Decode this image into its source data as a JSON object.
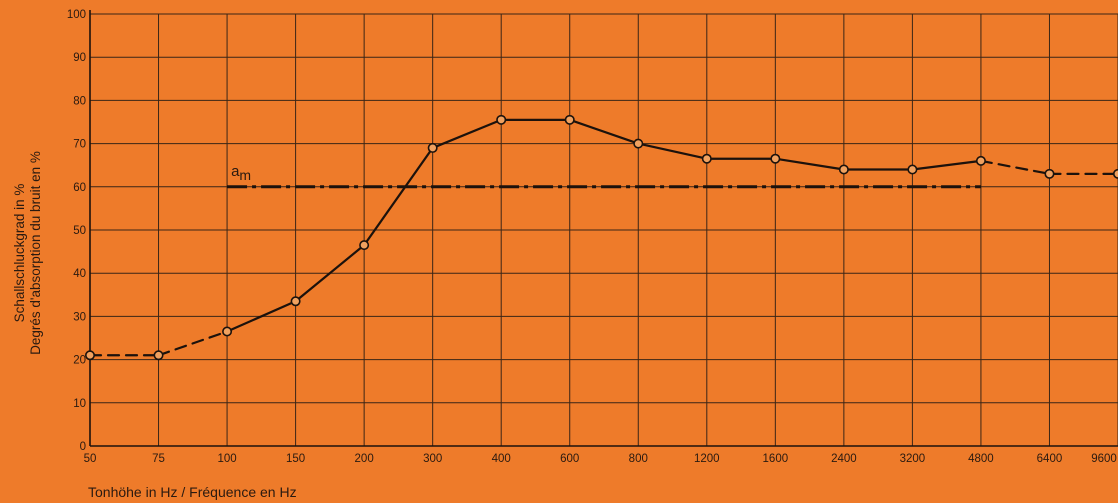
{
  "chart_data": {
    "type": "line",
    "title": "",
    "xlabel": "Tonhöhe in Hz / Fréquence en Hz",
    "ylabel": [
      "Schallschluckgrad in %",
      "Degrés d'absorption du bruit en %"
    ],
    "x_tick_labels": [
      "50",
      "75",
      "100",
      "150",
      "200",
      "300",
      "400",
      "600",
      "800",
      "1200",
      "1600",
      "2400",
      "3200",
      "4800",
      "6400",
      "9600"
    ],
    "y_ticks": [
      0,
      10,
      20,
      30,
      40,
      50,
      60,
      70,
      80,
      90,
      100
    ],
    "ylim": [
      0,
      100
    ],
    "grid": true,
    "series": [
      {
        "style": "solid line with circle markers, dashed at the extremes",
        "x": [
          "50",
          "75",
          "100",
          "150",
          "200",
          "300",
          "400",
          "600",
          "800",
          "1200",
          "1600",
          "2400",
          "3200",
          "4800",
          "6400",
          "9600"
        ],
        "values": [
          21,
          21,
          26.5,
          33.5,
          46.5,
          69,
          75.5,
          75.5,
          70,
          66.5,
          66.5,
          64,
          64,
          66,
          63,
          63
        ],
        "dashed_segments": [
          [
            0,
            1
          ],
          [
            1,
            2
          ],
          [
            13,
            14
          ],
          [
            14,
            15
          ]
        ]
      },
      {
        "name": "am",
        "style": "dash-dot",
        "x": [
          "100",
          "4800"
        ],
        "values": [
          60,
          60
        ]
      }
    ],
    "annotations": [
      {
        "text": "a",
        "subscript": "m",
        "near_x": "100",
        "near_y": 63
      }
    ]
  },
  "colors": {
    "background": "#ee7b2a",
    "grid": "#3a2516",
    "line": "#1c120c",
    "marker_fill": "#f0a15f"
  }
}
